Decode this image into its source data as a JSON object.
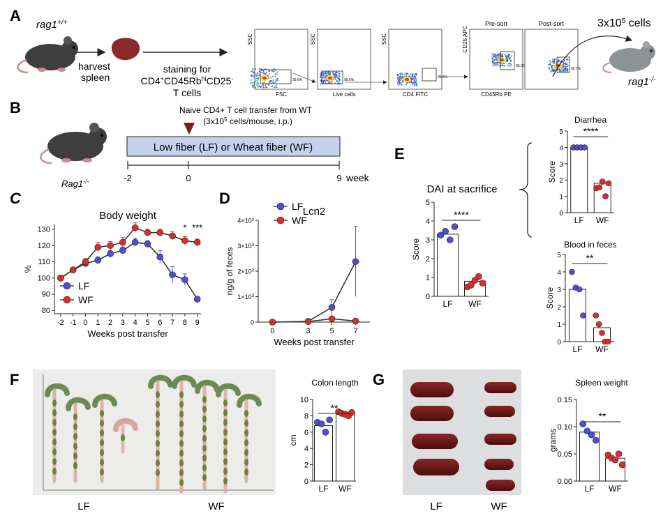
{
  "panelA": {
    "letter": "A",
    "donor": "rag1",
    "donor_sup": "+/+",
    "harvest": [
      "harvest",
      "spleen"
    ],
    "staining": {
      "line1": "staining for",
      "line2": {
        "a": "CD4",
        "a_sup": "+",
        "b": "CD45Rb",
        "b_sup": "hi",
        "c": "CD25",
        "c_sup": "-"
      },
      "line3": "T cells"
    },
    "cells": "3x10",
    "cells_sup": "5",
    "cells_tail": " cells",
    "recipient": "rag1",
    "recipient_sup": "-/-",
    "flow": [
      {
        "y": "SSC",
        "x": "FSC",
        "gate": "29.6%"
      },
      {
        "y": "SSC",
        "x": "Live cells",
        "gate": "99.6%"
      },
      {
        "y": "SSC",
        "x": "CD4 FITC",
        "gate": "29.8%"
      },
      {
        "y": "CD25 APC",
        "x": "CD45Rb PE",
        "gate": "89.3%",
        "title": "Pre-sort"
      },
      {
        "y": "",
        "x": "",
        "gate": "99.7%",
        "title": "Post-sort"
      }
    ]
  },
  "panelB": {
    "letter": "B",
    "mouse": "Rag1",
    "mouse_sup": "-/-",
    "transfer_line1": "Naive CD4+ T cell transfer from WT",
    "transfer_line2a": "(3x10",
    "transfer_sup": "5",
    "transfer_line2b": " cells/mouse, i.p.)",
    "bar": "Low fiber (LF) or Wheat fiber (WF)",
    "ticks": [
      "-2",
      "0",
      "9"
    ],
    "unit": "week"
  },
  "colors": {
    "LF": "#4f4fd6",
    "WF": "#d92e2e",
    "barfill": "#c5d3ea",
    "spleen": "#6b1a1a"
  },
  "panelC": {
    "letter": "C",
    "chart_data": {
      "type": "line",
      "title": "Body weight",
      "xlabel": "Weeks post transfer",
      "ylabel": "%",
      "x": [
        -2,
        -1,
        0,
        1,
        2,
        3,
        4,
        5,
        6,
        7,
        8,
        9
      ],
      "ylim": [
        78,
        133
      ],
      "yticks": [
        80,
        90,
        100,
        110,
        120,
        130
      ],
      "series": [
        {
          "name": "LF",
          "values": [
            100,
            105,
            109,
            111,
            115,
            117,
            122,
            121,
            113,
            102,
            99,
            87
          ],
          "err": [
            0.8,
            1.5,
            2,
            2,
            2,
            2,
            2.5,
            2,
            4,
            5,
            3.5,
            1.5
          ]
        },
        {
          "name": "WF",
          "values": [
            100,
            105,
            110,
            119,
            120,
            122,
            131,
            128,
            128,
            126,
            123,
            122
          ],
          "err": [
            0.8,
            1.5,
            2,
            3,
            2.5,
            3,
            3,
            2,
            2,
            2.5,
            2.5,
            2
          ]
        }
      ],
      "annotations": [
        {
          "x": 8,
          "text": "*"
        },
        {
          "x": 9,
          "text": "***"
        }
      ]
    }
  },
  "panelD": {
    "letter": "D",
    "chart_data": {
      "type": "line",
      "title": "Lcn2",
      "xlabel": "Weeks post transfer",
      "ylabel": "ng/g of feces",
      "x": [
        0,
        3,
        5,
        7
      ],
      "ylim": [
        0,
        4000
      ],
      "yticks": [
        "0",
        "1×10",
        "2×10",
        "3×10",
        "4×10"
      ],
      "ytick_sup": "3",
      "series": [
        {
          "name": "LF",
          "values": [
            0,
            30,
            580,
            2380
          ],
          "err": [
            20,
            40,
            300,
            1380
          ]
        },
        {
          "name": "WF",
          "values": [
            0,
            20,
            130,
            40
          ],
          "err": [
            10,
            20,
            60,
            30
          ]
        }
      ]
    }
  },
  "panelE": {
    "letter": "E",
    "dai": {
      "chart_data": {
        "type": "bar",
        "title": "DAI at sacrifice",
        "ylabel": "Score",
        "categories": [
          "LF",
          "WF"
        ],
        "values": [
          3.3,
          0.8
        ],
        "points": [
          [
            3.25,
            3.45,
            3.0,
            3.7
          ],
          [
            0.5,
            0.6,
            0.85,
            1.05,
            0.7
          ]
        ],
        "ylim": [
          0,
          5
        ],
        "yticks": [
          0,
          1,
          2,
          3,
          4,
          5
        ],
        "significance": "****"
      }
    },
    "diarrhea": {
      "chart_data": {
        "type": "bar",
        "title": "Diarrhea",
        "ylabel": "Score",
        "categories": [
          "LF",
          "WF"
        ],
        "values": [
          4,
          1.8
        ],
        "points": [
          [
            4,
            4,
            4,
            4
          ],
          [
            1.5,
            1.55,
            1.9,
            1.0,
            1.8
          ]
        ],
        "ylim": [
          0,
          5
        ],
        "yticks": [
          0,
          1,
          2,
          3,
          4,
          5
        ],
        "significance": "****"
      }
    },
    "blood": {
      "chart_data": {
        "type": "bar",
        "title": "Blood in feces",
        "ylabel": "Score",
        "categories": [
          "LF",
          "WF"
        ],
        "values": [
          3.0,
          0.8
        ],
        "points": [
          [
            4.0,
            3.1,
            3.0,
            1.5
          ],
          [
            1.5,
            1.0,
            0.5,
            0.0,
            0.0
          ]
        ],
        "ylim": [
          0,
          5
        ],
        "yticks": [
          0,
          1,
          2,
          3,
          4,
          5
        ],
        "significance": "**"
      }
    }
  },
  "panelF": {
    "letter": "F",
    "photo_labels": [
      "LF",
      "WF"
    ],
    "chart_data": {
      "type": "bar",
      "title": "Colon length",
      "ylabel": "cm",
      "categories": [
        "LF",
        "WF"
      ],
      "values": [
        6.8,
        8.3
      ],
      "points": [
        [
          7.2,
          7.0,
          6.0,
          7.5
        ],
        [
          8.5,
          8.3,
          8.2,
          8.0,
          8.4
        ]
      ],
      "ylim": [
        0,
        10
      ],
      "yticks": [
        0,
        2,
        4,
        6,
        8,
        10
      ],
      "significance": "**"
    }
  },
  "panelG": {
    "letter": "G",
    "photo_labels": [
      "LF",
      "WF"
    ],
    "chart_data": {
      "type": "bar",
      "title": "Spleen weight",
      "ylabel": "grams",
      "categories": [
        "LF",
        "WF"
      ],
      "values": [
        0.09,
        0.042
      ],
      "points": [
        [
          0.105,
          0.092,
          0.085,
          0.075
        ],
        [
          0.048,
          0.042,
          0.039,
          0.05,
          0.03
        ]
      ],
      "ylim": [
        0,
        0.15
      ],
      "yticks": [
        "0.00",
        "0.05",
        "0.10",
        "0.15"
      ],
      "significance": "**"
    }
  }
}
